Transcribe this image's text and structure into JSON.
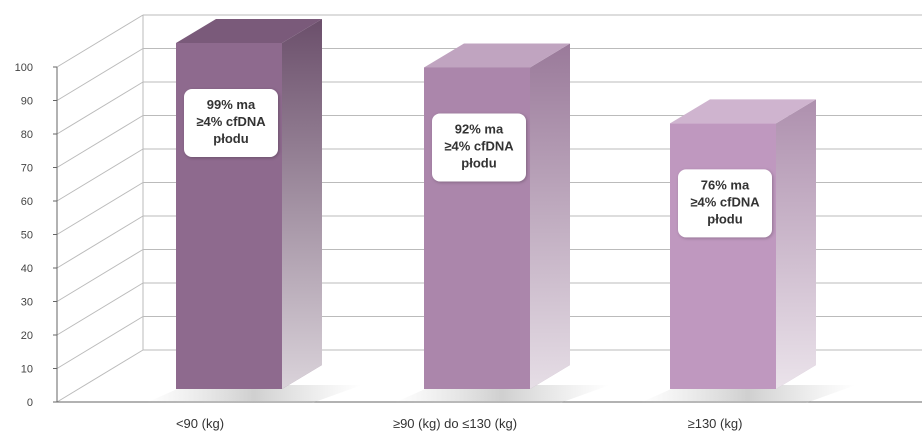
{
  "chart_data": {
    "type": "bar",
    "categories": [
      "<90 (kg)",
      "≥90 (kg) do ≤130 (kg)",
      "≥130 (kg)"
    ],
    "values": [
      99,
      92,
      76
    ],
    "ylim": [
      0,
      100
    ],
    "yticks": [
      0,
      10,
      20,
      30,
      40,
      50,
      60,
      70,
      80,
      90,
      100
    ],
    "grid": true,
    "bar_labels": [
      [
        "99% ma",
        "≥4% cfDNA",
        "płodu"
      ],
      [
        "92% ma",
        "≥4% cfDNA",
        "płodu"
      ],
      [
        "76% ma",
        "≥4% cfDNA",
        "płodu"
      ]
    ],
    "colors": {
      "bar1_front": "#8e6a8e",
      "bar1_side": "#6b4f6b",
      "bar1_top": "#7a5a7a",
      "bar2_front": "#ab86ab",
      "bar2_side": "#9a7a9a",
      "bar2_top": "#c0a4c0",
      "bar3_front": "#bf98bf",
      "bar3_side": "#ae90ae",
      "bar3_top": "#cfb4cf",
      "grid": "#bbbbbb",
      "badge_bg": "#ffffff"
    }
  }
}
